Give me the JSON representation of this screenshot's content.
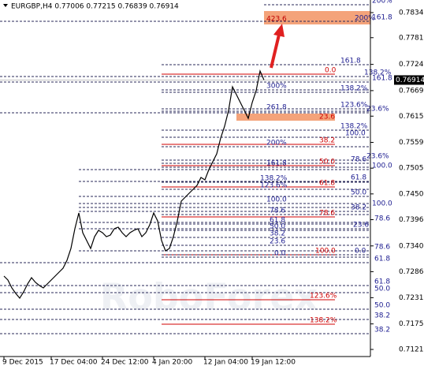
{
  "chart_data": {
    "type": "line",
    "title": "EURGBP,H4 0.77006 0.77215 0.76839 0.76914",
    "watermark": "RoboForex",
    "color": "#000000",
    "values": [
      0.72767,
      0.72683,
      0.72517,
      0.724,
      0.723,
      0.72433,
      0.726,
      0.72734,
      0.72633,
      0.72567,
      0.72517,
      0.726,
      0.72683,
      0.72767,
      0.7285,
      0.72934,
      0.73101,
      0.73351,
      0.73768,
      0.74102,
      0.73685,
      0.73518,
      0.73351,
      0.73601,
      0.73735,
      0.73685,
      0.73601,
      0.73635,
      0.73768,
      0.73801,
      0.73685,
      0.73601,
      0.73685,
      0.73735,
      0.73768,
      0.73601,
      0.73685,
      0.73851,
      0.74102,
      0.73935,
      0.73518,
      0.73301,
      0.73351,
      0.73601,
      0.73935,
      0.74352,
      0.74435,
      0.74519,
      0.74602,
      0.74686,
      0.74853,
      0.74803,
      0.7502,
      0.75186,
      0.75353,
      0.75687,
      0.75937,
      0.76271,
      0.76772,
      0.76605,
      0.76438,
      0.76271,
      0.76104,
      0.76438,
      0.76688,
      0.77105,
      0.76914
    ],
    "last_price": 0.76914,
    "xlim": [
      -1,
      93
    ],
    "xticks": [
      {
        "value": 0,
        "label": "9 Dec 2015"
      },
      {
        "value": 12,
        "label": "17 Dec 04:00"
      },
      {
        "value": 25,
        "label": "24 Dec 12:00"
      },
      {
        "value": 38,
        "label": "4 Jan 20:00"
      },
      {
        "value": 51,
        "label": "12 Jan 04:00"
      },
      {
        "value": 63,
        "label": "19 Jan 12:00"
      }
    ],
    "ylim": [
      0.71065,
      0.78607
    ],
    "yticks": [
      {
        "value": 0.7834,
        "label": "0.78340"
      },
      0.7781,
      0.77245,
      {
        "value": 0.7669,
        "label": "0.76690"
      },
      {
        "value": 0.7615,
        "label": "0.76150"
      },
      0.75595,
      {
        "value": 0.7505,
        "label": "0.75050"
      },
      0.74505,
      {
        "value": 0.7396,
        "label": "0.73960"
      },
      0.73405,
      {
        "value": 0.7286,
        "label": "0.72860"
      },
      {
        "value": 0.7231,
        "label": "0.72310"
      },
      0.71755,
      0.71215
    ],
    "grid": false,
    "fib_levels": [
      {
        "label": "200%",
        "level": 0.78507,
        "color": "#1b1b8f"
      },
      {
        "label": "161.8",
        "level": 0.78157,
        "color": "#1b1b8f"
      },
      {
        "label": "423.6",
        "level": 0.78207,
        "color": "#c00000"
      },
      {
        "label": "200%",
        "level": 0.78224,
        "color": "#1b1b8f"
      },
      {
        "label": "161.8",
        "level": 0.77239,
        "color": "#1b1b8f"
      },
      {
        "label": "0.0",
        "level": 0.77038,
        "color": "#d00000"
      },
      {
        "label": "138.2%",
        "level": 0.76989,
        "color": "#1b1b8f"
      },
      {
        "label": "161.8",
        "level": 0.76872,
        "color": "#1b1b8f"
      },
      {
        "label": "300%",
        "level": 0.76705,
        "color": "#1b1b8f"
      },
      {
        "label": "138.2%",
        "level": 0.76655,
        "color": "#1b1b8f"
      },
      {
        "label": "123.6%",
        "level": 0.76304,
        "color": "#1b1b8f"
      },
      {
        "label": "261.8",
        "level": 0.76254,
        "color": "#1b1b8f"
      },
      {
        "label": "23.6%",
        "level": 0.76221,
        "color": "#1b1b8f"
      },
      {
        "label": "23.6",
        "level": 0.76137,
        "color": "#d00000"
      },
      {
        "label": "138.2%",
        "level": 0.75854,
        "color": "#1b1b8f"
      },
      {
        "label": "100.0",
        "level": 0.75704,
        "color": "#1b1b8f"
      },
      {
        "label": "38.2",
        "level": 0.75553,
        "color": "#d00000"
      },
      {
        "label": "200%",
        "level": 0.75503,
        "color": "#1b1b8f"
      },
      {
        "label": "23.6%",
        "level": 0.7522,
        "color": "#1b1b8f"
      },
      {
        "label": "78.6",
        "level": 0.75153,
        "color": "#1b1b8f"
      },
      {
        "label": "50.0",
        "level": 0.75103,
        "color": "#d00000"
      },
      {
        "label": "161.8",
        "level": 0.7507,
        "color": "#1b1b8f"
      },
      {
        "label": "100.0",
        "level": 0.7502,
        "color": "#1b1b8f"
      },
      {
        "label": "61.8",
        "level": 0.74769,
        "color": "#1b1b8f"
      },
      {
        "label": "138.2%",
        "level": 0.74753,
        "color": "#1b1b8f"
      },
      {
        "label": "61.8",
        "level": 0.74653,
        "color": "#d00000"
      },
      {
        "label": "123.6%",
        "level": 0.74603,
        "color": "#1b1b8f"
      },
      {
        "label": "50.0",
        "level": 0.74452,
        "color": "#1b1b8f"
      },
      {
        "label": "100.0",
        "level": 0.74302,
        "color": "#1b1b8f"
      },
      {
        "label": "100.0",
        "level": 0.74219,
        "color": "#1b1b8f"
      },
      {
        "label": "38.2",
        "level": 0.74135,
        "color": "#1b1b8f"
      },
      {
        "label": "78.6",
        "level": 0.74068,
        "color": "#1b1b8f"
      },
      {
        "label": "78.6",
        "level": 0.74018,
        "color": "#d00000"
      },
      {
        "label": "78.6",
        "level": 0.73902,
        "color": "#1b1b8f"
      },
      {
        "label": "61.8",
        "level": 0.73868,
        "color": "#1b1b8f"
      },
      {
        "label": "23.6",
        "level": 0.73768,
        "color": "#1b1b8f"
      },
      {
        "label": "50.0",
        "level": 0.73735,
        "color": "#1b1b8f"
      },
      {
        "label": "38.2",
        "level": 0.73585,
        "color": "#1b1b8f"
      },
      {
        "label": "23.6",
        "level": 0.73418,
        "color": "#1b1b8f"
      },
      {
        "label": "78.6",
        "level": 0.73301,
        "color": "#1b1b8f"
      },
      {
        "label": "100.0",
        "level": 0.73218,
        "color": "#d00000"
      },
      {
        "label": "0.0",
        "level": 0.73218,
        "color": "#1b1b8f"
      },
      {
        "label": "0.0",
        "level": 0.73167,
        "color": "#1b1b8f"
      },
      {
        "label": "61.8",
        "level": 0.73051,
        "color": "#1b1b8f"
      },
      {
        "label": "61.8",
        "level": 0.72567,
        "color": "#1b1b8f"
      },
      {
        "label": "50.0",
        "level": 0.72417,
        "color": "#1b1b8f"
      },
      {
        "label": "123.6%",
        "level": 0.72266,
        "color": "#d00000"
      },
      {
        "label": "50.0",
        "level": 0.72066,
        "color": "#1b1b8f"
      },
      {
        "label": "38.2",
        "level": 0.71849,
        "color": "#1b1b8f"
      },
      {
        "label": "138.2%",
        "level": 0.71749,
        "color": "#d00000"
      },
      {
        "label": "38.2",
        "level": 0.71549,
        "color": "#1b1b8f"
      }
    ]
  }
}
